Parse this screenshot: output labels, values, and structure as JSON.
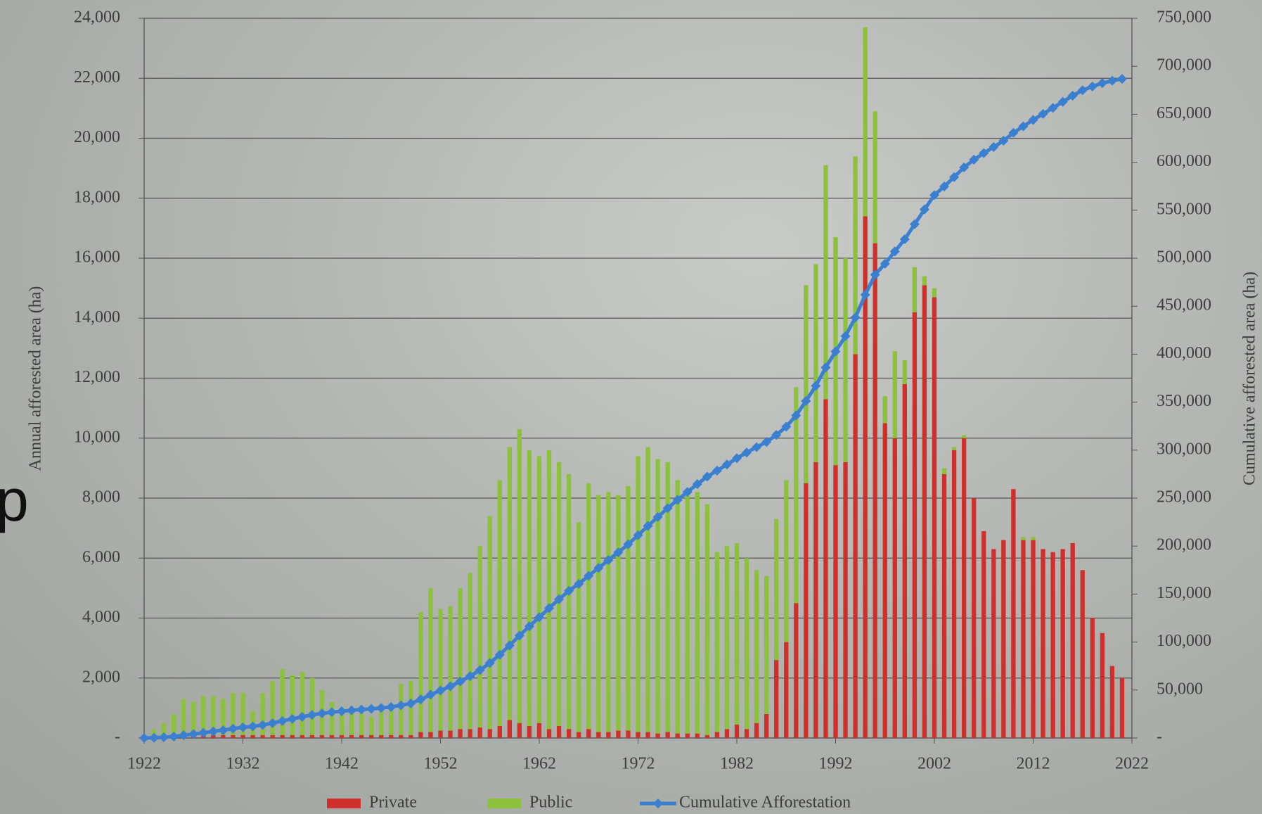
{
  "chart_data": {
    "type": "stacked-bar-line",
    "side_text": "p",
    "ylabel": "Annual afforested area (ha)",
    "y2label": "Cumulative afforested area (ha)",
    "xlim": [
      1922,
      2022
    ],
    "xticks": [
      1922,
      1932,
      1942,
      1952,
      1962,
      1972,
      1982,
      1992,
      2002,
      2012,
      2022
    ],
    "ylim": [
      0,
      24000
    ],
    "yticks": [
      {
        "value": 0,
        "label": "-"
      },
      {
        "value": 2000,
        "label": "2,000"
      },
      {
        "value": 4000,
        "label": "4,000"
      },
      {
        "value": 6000,
        "label": "6,000"
      },
      {
        "value": 8000,
        "label": "8,000"
      },
      {
        "value": 10000,
        "label": "10,000"
      },
      {
        "value": 12000,
        "label": "12,000"
      },
      {
        "value": 14000,
        "label": "14,000"
      },
      {
        "value": 16000,
        "label": "16,000"
      },
      {
        "value": 18000,
        "label": "18,000"
      },
      {
        "value": 20000,
        "label": "20,000"
      },
      {
        "value": 22000,
        "label": "22,000"
      },
      {
        "value": 24000,
        "label": "24,000"
      }
    ],
    "y2lim": [
      0,
      750000
    ],
    "y2ticks": [
      {
        "value": 0,
        "label": "-"
      },
      {
        "value": 50000,
        "label": "50,000"
      },
      {
        "value": 100000,
        "label": "100,000"
      },
      {
        "value": 150000,
        "label": "150,000"
      },
      {
        "value": 200000,
        "label": "200,000"
      },
      {
        "value": 250000,
        "label": "250,000"
      },
      {
        "value": 300000,
        "label": "300,000"
      },
      {
        "value": 350000,
        "label": "350,000"
      },
      {
        "value": 400000,
        "label": "400,000"
      },
      {
        "value": 450000,
        "label": "450,000"
      },
      {
        "value": 500000,
        "label": "500,000"
      },
      {
        "value": 550000,
        "label": "550,000"
      },
      {
        "value": 600000,
        "label": "600,000"
      },
      {
        "value": 650000,
        "label": "650,000"
      },
      {
        "value": 700000,
        "label": "700,000"
      },
      {
        "value": 750000,
        "label": "750,000"
      }
    ],
    "grid": true,
    "legend": "bottom",
    "x": [
      1922,
      1923,
      1924,
      1925,
      1926,
      1927,
      1928,
      1929,
      1930,
      1931,
      1932,
      1933,
      1934,
      1935,
      1936,
      1937,
      1938,
      1939,
      1940,
      1941,
      1942,
      1943,
      1944,
      1945,
      1946,
      1947,
      1948,
      1949,
      1950,
      1951,
      1952,
      1953,
      1954,
      1955,
      1956,
      1957,
      1958,
      1959,
      1960,
      1961,
      1962,
      1963,
      1964,
      1965,
      1966,
      1967,
      1968,
      1969,
      1970,
      1971,
      1972,
      1973,
      1974,
      1975,
      1976,
      1977,
      1978,
      1979,
      1980,
      1981,
      1982,
      1983,
      1984,
      1985,
      1986,
      1987,
      1988,
      1989,
      1990,
      1991,
      1992,
      1993,
      1994,
      1995,
      1996,
      1997,
      1998,
      1999,
      2000,
      2001,
      2002,
      2003,
      2004,
      2005,
      2006,
      2007,
      2008,
      2009,
      2010,
      2011,
      2012,
      2013,
      2014,
      2015,
      2016,
      2017,
      2018,
      2019,
      2020,
      2021
    ],
    "series": [
      {
        "name": "Private",
        "color": "#d0302c",
        "kind": "bar",
        "values": [
          0,
          50,
          100,
          100,
          100,
          100,
          100,
          100,
          100,
          100,
          100,
          100,
          100,
          100,
          100,
          100,
          100,
          100,
          100,
          100,
          100,
          100,
          100,
          100,
          100,
          100,
          100,
          100,
          200,
          200,
          250,
          250,
          300,
          300,
          350,
          300,
          400,
          600,
          500,
          400,
          500,
          300,
          400,
          300,
          200,
          300,
          200,
          200,
          250,
          250,
          200,
          200,
          150,
          200,
          150,
          150,
          150,
          100,
          200,
          300,
          450,
          300,
          500,
          800,
          2600,
          3200,
          4500,
          8500,
          9200,
          11300,
          9100,
          9200,
          12800,
          17400,
          16500,
          10500,
          10000,
          11800,
          14200,
          15100,
          14700,
          8800,
          9600,
          10000,
          8000,
          6900,
          6300,
          6600,
          8300,
          6600,
          6600,
          6300,
          6200,
          6300,
          6500,
          5600,
          4000,
          3500,
          2400,
          2000
        ]
      },
      {
        "name": "Public",
        "color": "#8cc13c",
        "kind": "bar",
        "values": [
          0,
          250,
          400,
          700,
          1200,
          1100,
          1300,
          1300,
          1200,
          1400,
          1400,
          800,
          1400,
          1800,
          2200,
          2000,
          2100,
          1900,
          1500,
          1100,
          900,
          900,
          700,
          600,
          800,
          900,
          1700,
          1800,
          4000,
          4800,
          4050,
          4150,
          4700,
          5200,
          6050,
          7100,
          8200,
          9100,
          9800,
          9200,
          8900,
          9300,
          8800,
          8500,
          7000,
          8200,
          7900,
          8000,
          7850,
          8150,
          9200,
          9500,
          9150,
          9000,
          8450,
          8150,
          8050,
          7700,
          6000,
          6100,
          6050,
          5700,
          5100,
          4600,
          4700,
          5400,
          7200,
          6600,
          6600,
          7800,
          7600,
          6800,
          6600,
          6300,
          4400,
          900,
          2900,
          800,
          1500,
          300,
          300,
          200,
          100,
          100,
          0,
          0,
          0,
          0,
          0,
          100,
          100,
          0,
          0,
          0,
          0,
          0,
          0,
          0,
          0,
          0
        ]
      },
      {
        "name": "Cumulative Afforestation",
        "color": "#3a7fd0",
        "kind": "line",
        "axis": "y2",
        "values": [
          0,
          300,
          800,
          1600,
          2900,
          4100,
          5500,
          6900,
          8200,
          9700,
          11200,
          12100,
          13600,
          15500,
          17800,
          19900,
          22100,
          24100,
          25700,
          26900,
          27900,
          28900,
          29700,
          30400,
          31300,
          32300,
          34100,
          36000,
          40200,
          45200,
          49500,
          53900,
          58900,
          64400,
          70800,
          78200,
          86800,
          96500,
          106800,
          116400,
          125800,
          135400,
          144600,
          153400,
          160600,
          169100,
          177200,
          185400,
          193500,
          201900,
          211300,
          221000,
          230300,
          239500,
          248100,
          256400,
          264600,
          272400,
          278600,
          285000,
          291500,
          297500,
          303100,
          308500,
          315800,
          324400,
          336100,
          351200,
          367000,
          386100,
          402800,
          418800,
          438200,
          461900,
          482800,
          494200,
          507100,
          519700,
          535400,
          550800,
          565800,
          574800,
          584500,
          594600,
          602600,
          609500,
          615800,
          622400,
          630700,
          637400,
          644100,
          650400,
          656600,
          662900,
          669400,
          675000,
          679000,
          682500,
          684900,
          686900
        ]
      }
    ]
  }
}
